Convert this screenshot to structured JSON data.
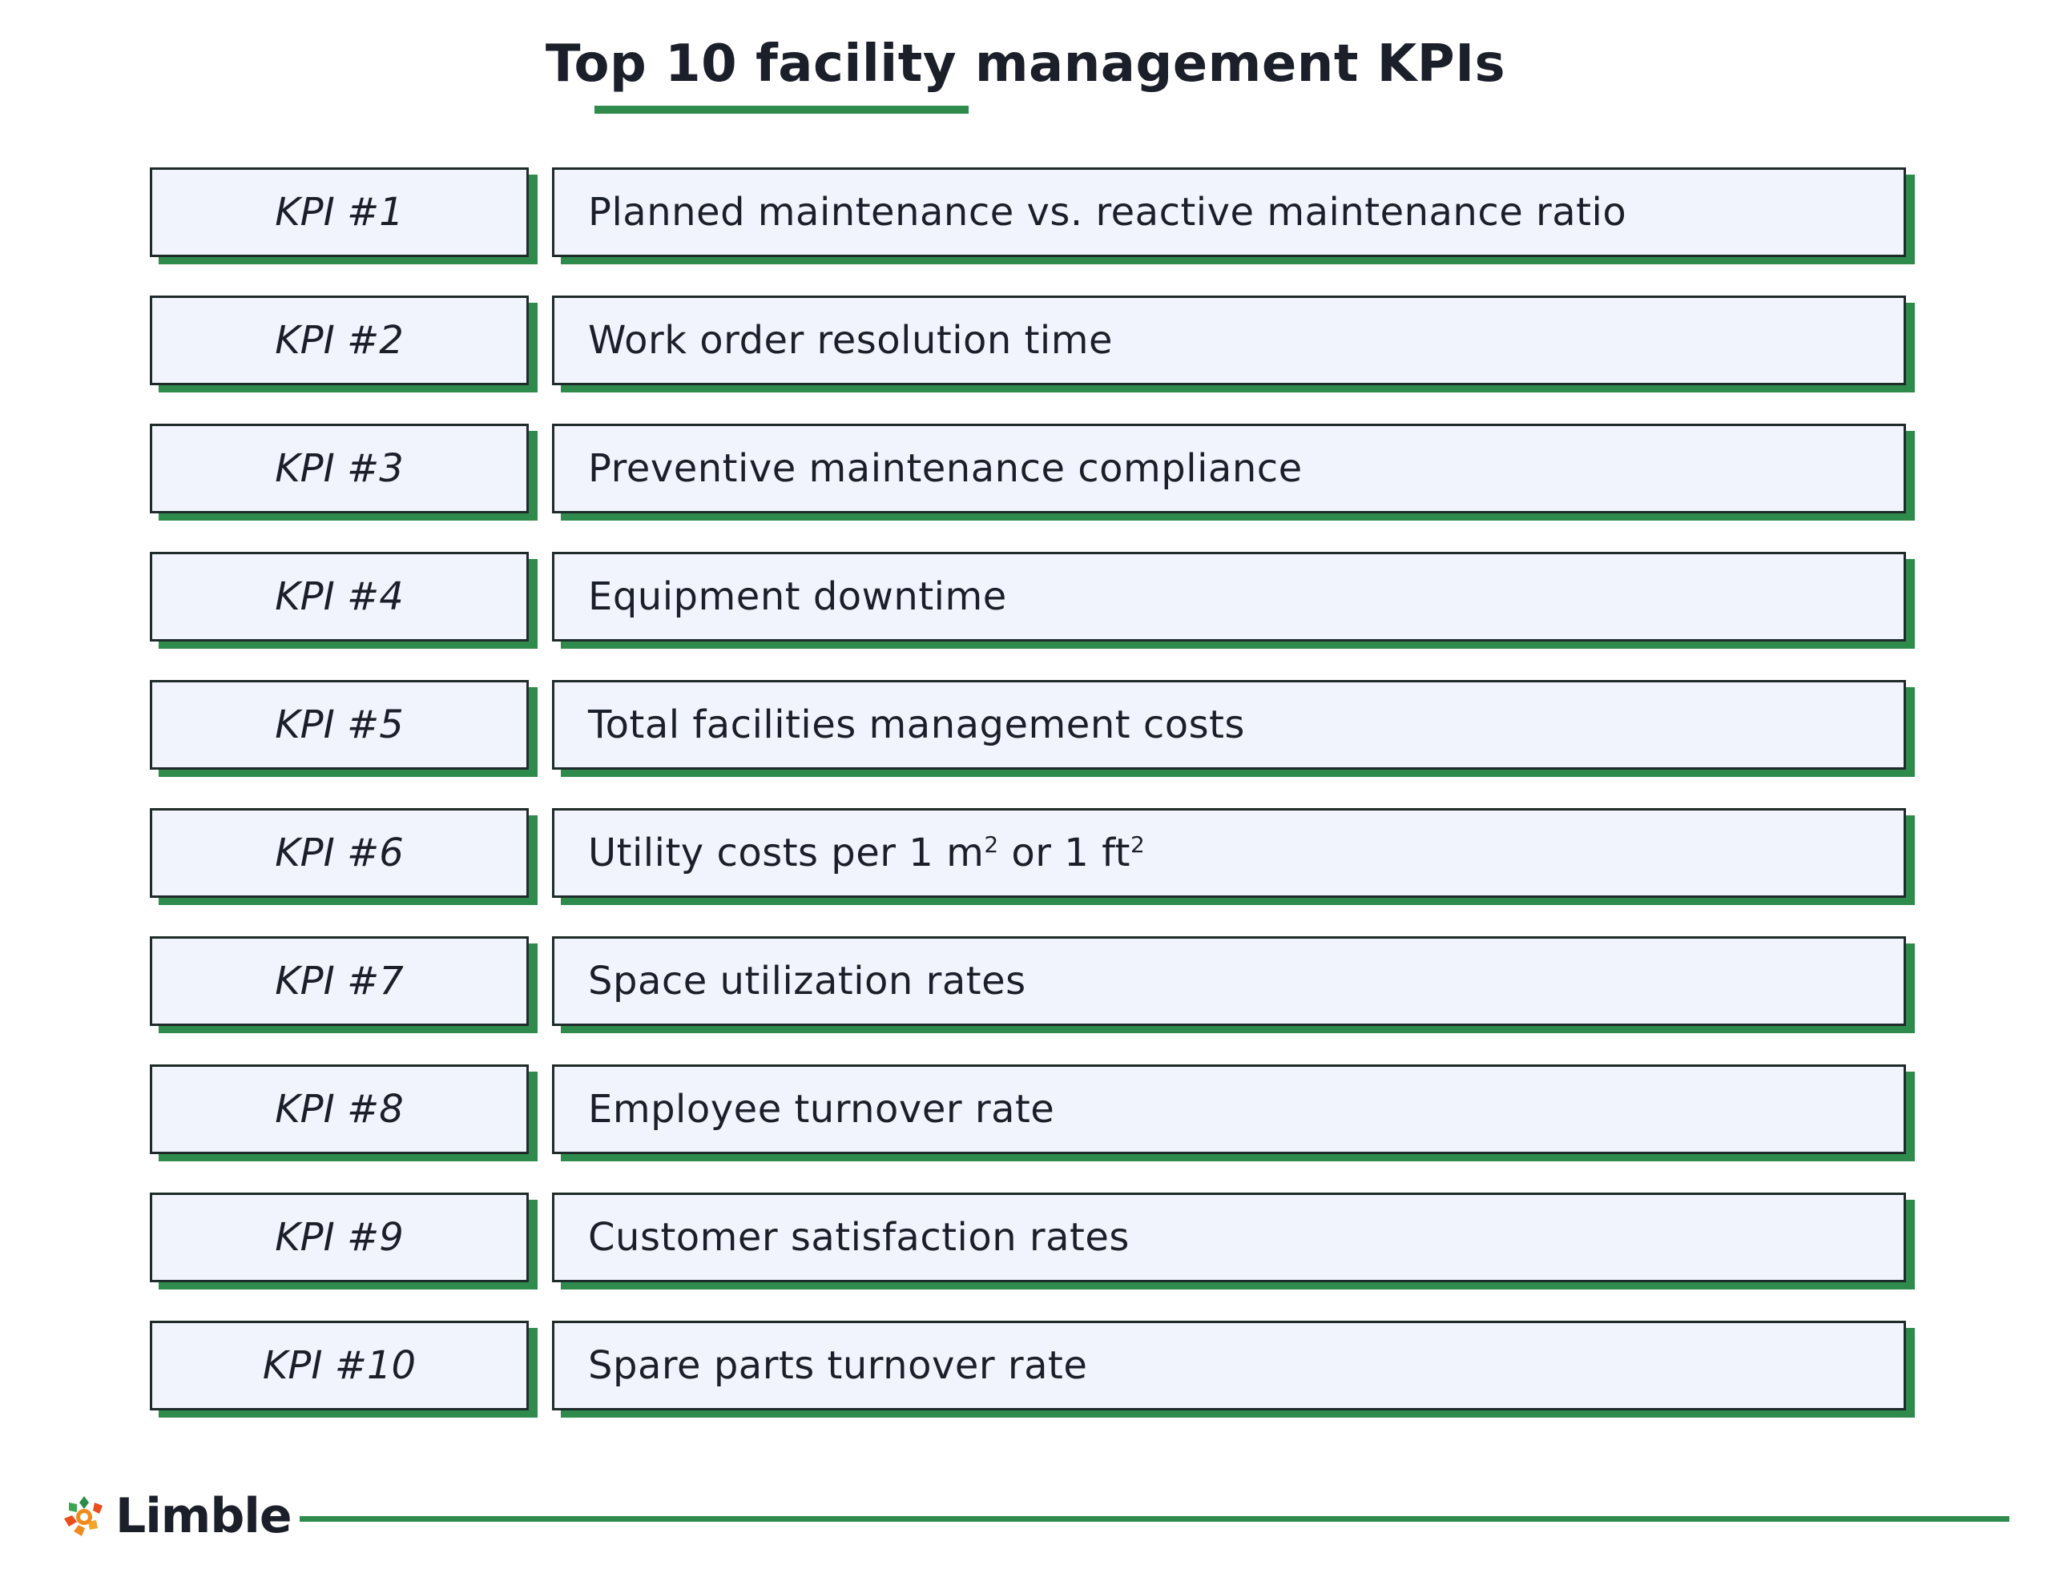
{
  "title": "Top 10 facility management KPIs",
  "colors": {
    "accent": "#2e8b4c",
    "box_fill": "#f1f4fd",
    "box_border": "#1f2a2a",
    "text": "#1b1f2a"
  },
  "kpis": [
    {
      "label": "KPI #1",
      "name": "Planned maintenance vs. reactive maintenance ratio"
    },
    {
      "label": "KPI #2",
      "name": "Work order resolution time"
    },
    {
      "label": "KPI #3",
      "name": "Preventive maintenance compliance"
    },
    {
      "label": "KPI #4",
      "name": "Equipment downtime"
    },
    {
      "label": "KPI #5",
      "name": "Total facilities management costs"
    },
    {
      "label": "KPI #6",
      "name_parts": [
        "Utility costs per 1 m",
        "2",
        " or 1 ft",
        "2"
      ]
    },
    {
      "label": "KPI #7",
      "name": "Space utilization rates"
    },
    {
      "label": "KPI #8",
      "name": "Employee turnover rate"
    },
    {
      "label": "KPI #9",
      "name": "Customer satisfaction rates"
    },
    {
      "label": "KPI #10",
      "name": "Spare parts turnover rate"
    }
  ],
  "footer": {
    "brand": "Limble",
    "logo_icon": "limble-gear-logo-icon"
  }
}
